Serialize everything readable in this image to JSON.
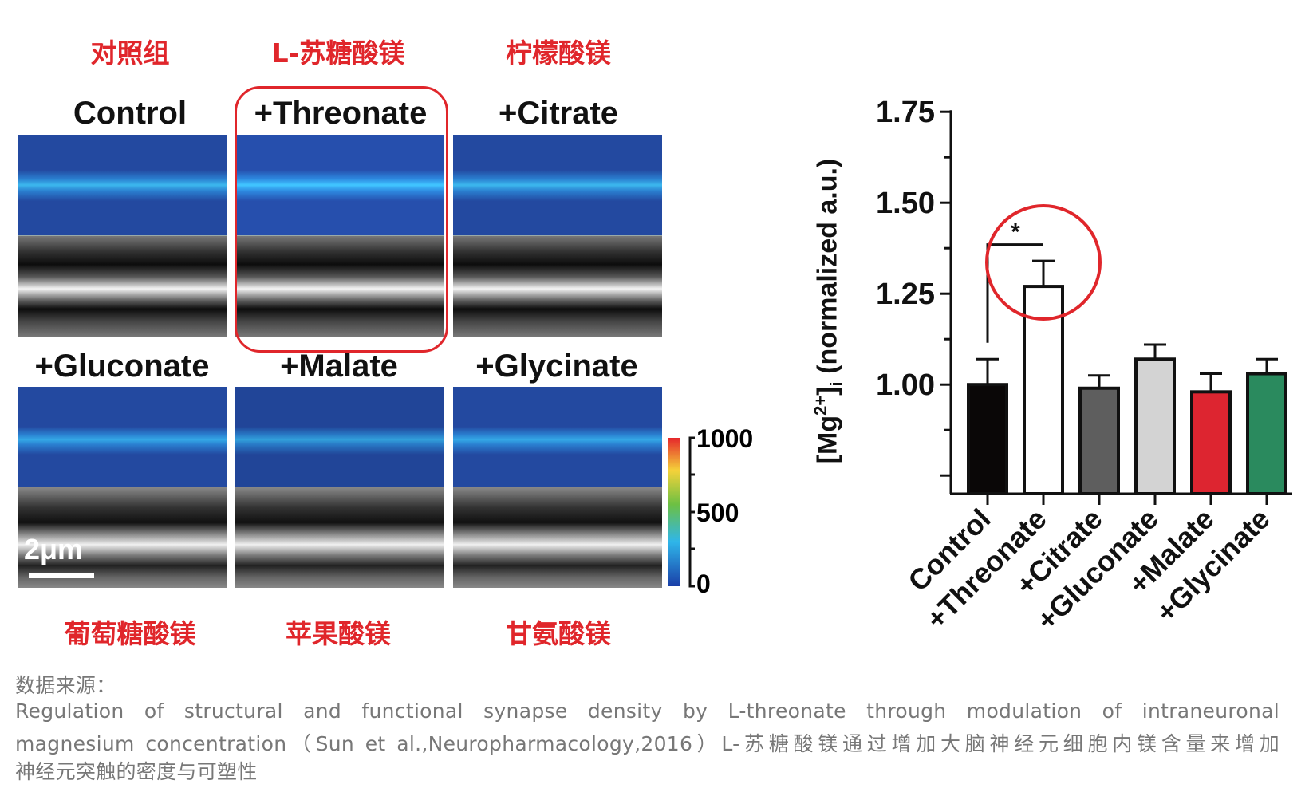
{
  "top_labels_cn": [
    "对照组",
    "L-苏糖酸镁",
    "柠檬酸镁"
  ],
  "bottom_labels_cn": [
    "葡萄糖酸镁",
    "苹果酸镁",
    "甘氨酸镁"
  ],
  "panel_headers": [
    "Control",
    "+Threonate",
    "+Citrate",
    "+Gluconate",
    "+Malate",
    "+Glycinate"
  ],
  "scale_bar": "2μm",
  "colorbar": {
    "ticks": [
      "1000",
      "500",
      "0"
    ],
    "colors": [
      "#1a3fa8",
      "#2fb6ea",
      "#6cc043",
      "#f4d23a",
      "#e5262b"
    ]
  },
  "highlight_color": "#e0262b",
  "chart_data": {
    "type": "bar",
    "categories": [
      "Control",
      "+Threonate",
      "+Citrate",
      "+Gluconate",
      "+Malate",
      "+Glycinate"
    ],
    "values": [
      1.0,
      1.27,
      0.99,
      1.07,
      0.98,
      1.03
    ],
    "error_upper": [
      1.07,
      1.34,
      1.025,
      1.11,
      1.03,
      1.07
    ],
    "colors": [
      "#0a0707",
      "#ffffff",
      "#5e5e5e",
      "#d3d3d3",
      "#dd2530",
      "#2a8a5e"
    ],
    "ylabel_main": "[Mg",
    "ylabel_sup": "2+",
    "ylabel_after": "]",
    "ylabel_sub": "i",
    "ylabel_tail": " (normalized a.u.)",
    "yticks": [
      "1.75",
      "1.50",
      "1.25",
      "1.00"
    ],
    "ylim": [
      0.7,
      1.75
    ],
    "significance": {
      "between": [
        "Control",
        "+Threonate"
      ],
      "label": "*"
    }
  },
  "caption": {
    "source_label": "数据来源：",
    "line1": "Regulation of structural and functional synapse density by L-threonate through modulation of intraneuronal",
    "line2": "magnesium concentration（Sun et al.,Neuropharmacology,2016）L-苏糖酸镁通过增加大脑神经元细胞内镁含量来增加",
    "line3": "神经元突触的密度与可塑性"
  }
}
